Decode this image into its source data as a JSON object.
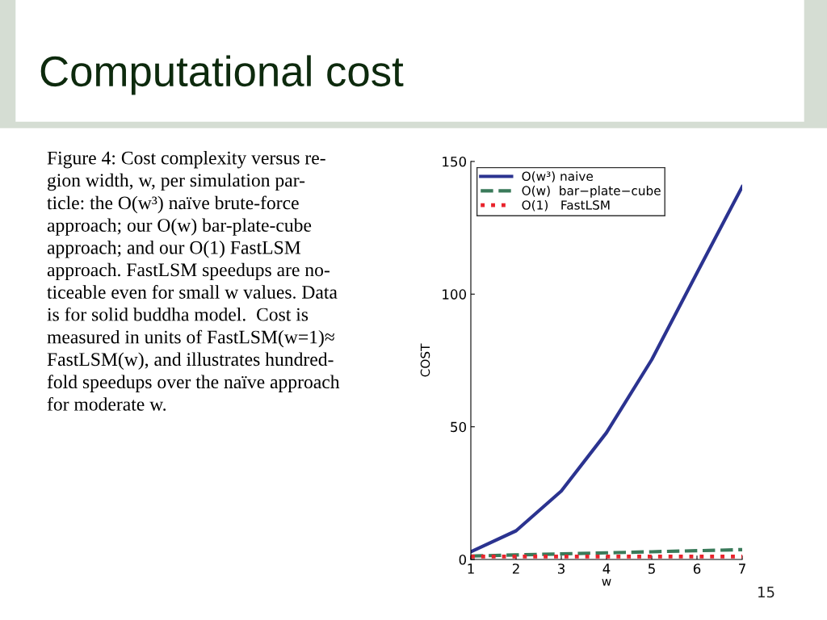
{
  "chart_data": {
    "type": "line",
    "title": "Computational cost",
    "xlabel": "w",
    "ylabel": "COST",
    "x": [
      1,
      2,
      3,
      4,
      5,
      6,
      7
    ],
    "series": [
      {
        "name": "O(w³) naive",
        "color": "#2b3390",
        "line_style": "solid",
        "values": [
          2.9,
          10.8,
          25.8,
          47.8,
          75.3,
          108,
          140.5
        ]
      },
      {
        "name": "O(w)  bar−plate−cube",
        "color": "#3a7a5a",
        "line_style": "dashed",
        "values": [
          1.3,
          1.7,
          2.1,
          2.5,
          2.9,
          3.3,
          3.7
        ]
      },
      {
        "name": "O(1)   FastLSM",
        "color": "#e8242c",
        "line_style": "dotted",
        "values": [
          1.1,
          1.1,
          1.1,
          1.1,
          1.1,
          1.1,
          1.1
        ]
      }
    ],
    "xlim": [
      1,
      7
    ],
    "xticks": [
      1,
      2,
      3,
      4,
      5,
      6,
      7
    ],
    "ylim": [
      0,
      150
    ],
    "yticks": [
      0,
      50,
      100,
      150
    ],
    "grid": false,
    "legend": "top left",
    "annotations": [
      "Figure 4: Cost complexity versus re-\ngion width, w, per simulation par-\nticle: the O(w³) naïve brute-force\napproach; our O(w) bar-plate-cube\napproach; and our O(1) FastLSM\napproach. FastLSM speedups are no-\nticeable even for small w values. Data\nis for solid buddha model.  Cost is\nmeasured in units of FastLSM(w=1)≈\nFastLSM(w), and illustrates hundred-\nfold speedups over the naïve approach\nfor moderate w.",
      "15"
    ]
  }
}
